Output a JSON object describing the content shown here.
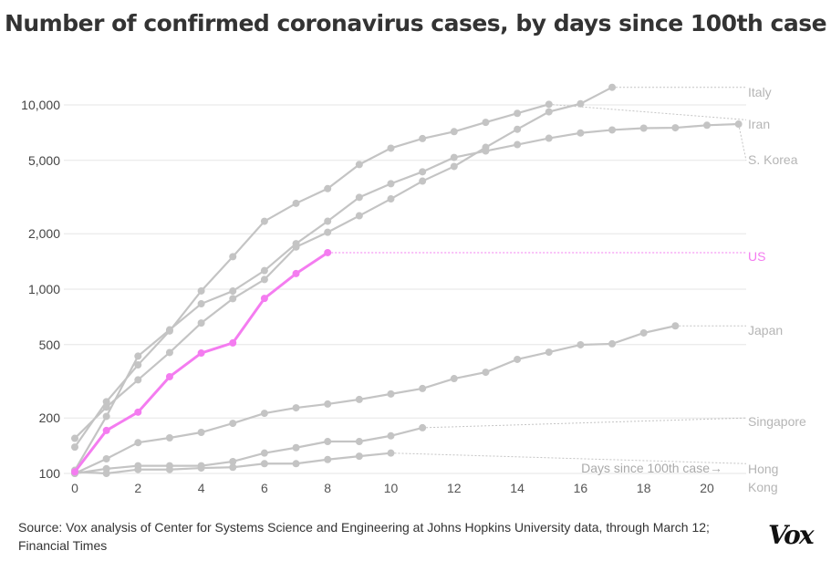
{
  "title": "Number of confirmed coronavirus cases, by days since 100th case",
  "source": "Source: Vox analysis of Center for Systems Science and Engineering at Johns Hopkins University data, through March 12; Financial Times",
  "logo": "Vox",
  "chart_data": {
    "type": "line",
    "title": "Number of confirmed coronavirus cases, by days since 100th case",
    "xlabel": "Days since 100th case→",
    "ylabel": "",
    "yscale": "log",
    "xlim": [
      0,
      21
    ],
    "ylim": [
      100,
      14000
    ],
    "xticks": [
      0,
      2,
      4,
      6,
      8,
      10,
      12,
      14,
      16,
      18,
      20
    ],
    "yticks": [
      100,
      200,
      500,
      1000,
      2000,
      5000,
      10000
    ],
    "ytick_labels": [
      "100",
      "200",
      "500",
      "1,000",
      "2,000",
      "5,000",
      "10,000"
    ],
    "grid": "horizontal",
    "colors": {
      "highlight": "#f47cf0",
      "other": "#c4c4c4",
      "grid": "#e6e6e6"
    },
    "series": [
      {
        "name": "Italy",
        "highlight": false,
        "values": [
          155,
          229,
          322,
          453,
          655,
          888,
          1128,
          1694,
          2036,
          2502,
          3089,
          3858,
          4636,
          5883,
          7375,
          9172,
          10149,
          12462
        ]
      },
      {
        "name": "Iran",
        "highlight": false,
        "values": [
          139,
          245,
          388,
          593,
          978,
          1501,
          2336,
          2922,
          3513,
          4747,
          5823,
          6566,
          7161,
          8042,
          9000,
          10075
        ]
      },
      {
        "name": "S. Korea",
        "highlight": false,
        "values": [
          104,
          204,
          433,
          602,
          833,
          977,
          1261,
          1766,
          2337,
          3150,
          3736,
          4335,
          5186,
          5621,
          6088,
          6593,
          7041,
          7314,
          7478,
          7513,
          7755,
          7869
        ]
      },
      {
        "name": "US",
        "highlight": true,
        "values": [
          102,
          171,
          215,
          335,
          450,
          511,
          891,
          1215,
          1578
        ]
      },
      {
        "name": "Japan",
        "highlight": false,
        "values": [
          100,
          120,
          147,
          156,
          167,
          187,
          212,
          227,
          238,
          252,
          270,
          289,
          327,
          354,
          416,
          455,
          499,
          505,
          579,
          632
        ]
      },
      {
        "name": "Singapore",
        "highlight": false,
        "values": [
          100,
          106,
          110,
          110,
          110,
          116,
          129,
          138,
          149,
          149,
          160,
          177
        ]
      },
      {
        "name": "Hong Kong",
        "highlight": false,
        "values": [
          102,
          100,
          105,
          105,
          107,
          108,
          113,
          113,
          119,
          124,
          129
        ]
      }
    ]
  }
}
